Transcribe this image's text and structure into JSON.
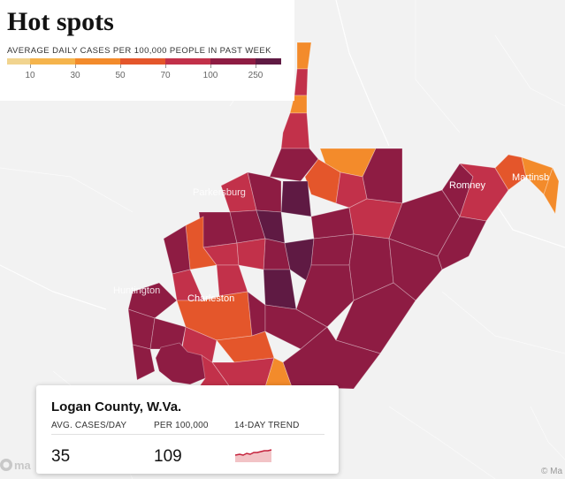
{
  "header": {
    "title": "Hot spots",
    "legend_caption": "AVERAGE DAILY CASES PER 100,000 PEOPLE IN PAST WEEK",
    "legend_labels": [
      "10",
      "30",
      "50",
      "70",
      "100",
      "250"
    ]
  },
  "colors": {
    "bin_lt10": "#f1d48f",
    "bin_10_30": "#f5b44c",
    "bin_30_50": "#f38b2b",
    "bin_50_70": "#e4562b",
    "bin_70_100": "#c2314a",
    "bin_100_250": "#8e1c43",
    "bin_gt250": "#5f1a43",
    "background": "#f2f2f2"
  },
  "map": {
    "labels": {
      "charleston": "Charleston",
      "romney": "Romney",
      "martinsburg": "Martinsb",
      "parkersburg": "Parkersburg",
      "huntington": "Huntington"
    }
  },
  "tooltip": {
    "county": "Logan County, W.Va.",
    "col1_label": "AVG. CASES/DAY",
    "col2_label": "PER 100,000",
    "col3_label": "14-DAY TREND",
    "avg_cases": "35",
    "per_100k": "109",
    "trend_icon": "sparkline-trend"
  },
  "attribution": {
    "mapbox": "© Ma",
    "logo_icon": "mapbox-logo-icon"
  }
}
